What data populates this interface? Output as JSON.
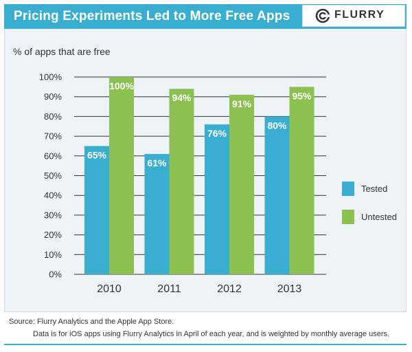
{
  "header": {
    "title": "Pricing Experiments Led to More Free Apps"
  },
  "logo": {
    "text": "FLURRY",
    "icon": "flurry-logo-icon"
  },
  "colors": {
    "tested": "#3aaed0",
    "untested": "#8cc152",
    "header": "#3aaed0"
  },
  "chart_data": {
    "type": "bar",
    "title": "Pricing Experiments Led to More Free Apps",
    "ylabel": "% of apps that are free",
    "xlabel": "",
    "categories": [
      "2010",
      "2011",
      "2012",
      "2013"
    ],
    "series": [
      {
        "name": "Tested",
        "values": [
          65,
          61,
          76,
          80
        ],
        "labels": [
          "65%",
          "61%",
          "76%",
          "80%"
        ]
      },
      {
        "name": "Untested",
        "values": [
          100,
          94,
          91,
          95
        ],
        "labels": [
          "100%",
          "94%",
          "91%",
          "95%"
        ]
      }
    ],
    "ylim": [
      0,
      100
    ],
    "yticks": [
      "0%",
      "10%",
      "20%",
      "30%",
      "40%",
      "50%",
      "60%",
      "70%",
      "80%",
      "90%",
      "100%"
    ],
    "grid": true,
    "legend_position": "right"
  },
  "legend": {
    "tested": "Tested",
    "untested": "Untested"
  },
  "footer": {
    "source": "Source: Flurry Analytics and the Apple App Store.",
    "note": "Data is for iOS apps using Flurry Analytics in April of each year, and is weighted by monthly average users."
  }
}
